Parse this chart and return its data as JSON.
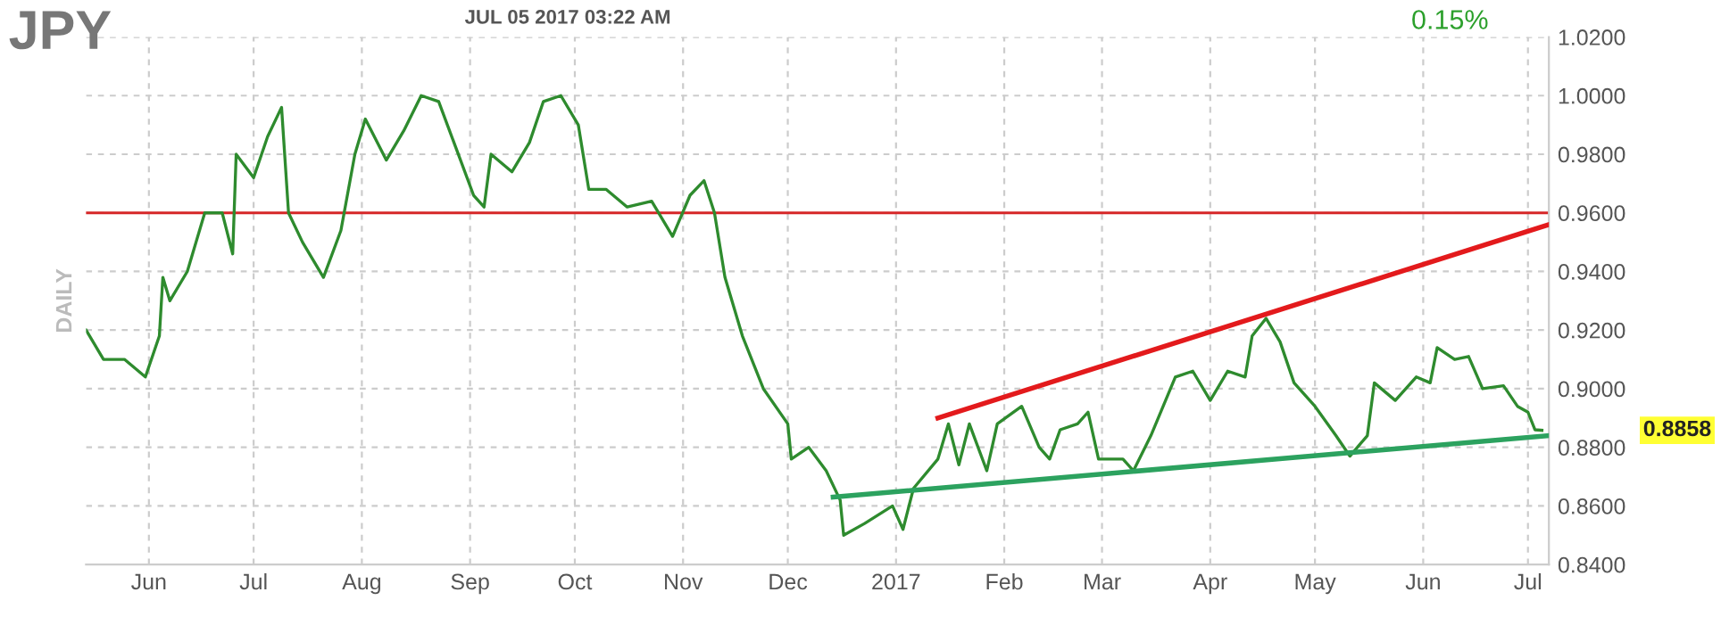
{
  "chart_data": {
    "type": "line",
    "title": "JPY",
    "subtitle": "JUL 05 2017 03:22 AM",
    "ylabel": "DAILY",
    "annotations": [
      "0.15%",
      "0.8858"
    ],
    "xlim": [
      "2016-05-14",
      "2017-07-07"
    ],
    "xticks": [
      {
        "value": "2016-06-01",
        "label": "Jun"
      },
      {
        "value": "2016-07-01",
        "label": "Jul"
      },
      {
        "value": "2016-08-01",
        "label": "Aug"
      },
      {
        "value": "2016-09-01",
        "label": "Sep"
      },
      {
        "value": "2016-10-01",
        "label": "Oct"
      },
      {
        "value": "2016-11-01",
        "label": "Nov"
      },
      {
        "value": "2016-12-01",
        "label": "Dec"
      },
      {
        "value": "2017-01-01",
        "label": "2017"
      },
      {
        "value": "2017-02-01",
        "label": "Feb"
      },
      {
        "value": "2017-03-01",
        "label": "Mar"
      },
      {
        "value": "2017-04-01",
        "label": "Apr"
      },
      {
        "value": "2017-05-01",
        "label": "May"
      },
      {
        "value": "2017-06-01",
        "label": "Jun"
      },
      {
        "value": "2017-07-01",
        "label": "Jul"
      }
    ],
    "ylim": [
      0.84,
      1.02
    ],
    "yticks": [
      {
        "value": 0.84,
        "label": "0.8400"
      },
      {
        "value": 0.86,
        "label": "0.8600"
      },
      {
        "value": 0.88,
        "label": "0.8800"
      },
      {
        "value": 0.9,
        "label": "0.9000"
      },
      {
        "value": 0.92,
        "label": "0.9200"
      },
      {
        "value": 0.94,
        "label": "0.9400"
      },
      {
        "value": 0.96,
        "label": "0.9600"
      },
      {
        "value": 0.98,
        "label": "0.9800"
      },
      {
        "value": 1.0,
        "label": "1.0000"
      },
      {
        "value": 1.02,
        "label": "1.0200"
      }
    ],
    "grid": true,
    "line_style": "solid",
    "marker": "none",
    "ref_lines": [
      {
        "axis": "y",
        "value": 0.96,
        "color": "#d62728"
      }
    ],
    "series": [
      {
        "color": "#2e8b2e",
        "x": [
          "2016-05-14",
          "2016-05-19",
          "2016-05-25",
          "2016-05-31",
          "2016-06-04",
          "2016-06-05",
          "2016-06-07",
          "2016-06-12",
          "2016-06-17",
          "2016-06-22",
          "2016-06-25",
          "2016-06-26",
          "2016-07-01",
          "2016-07-05",
          "2016-07-09",
          "2016-07-11",
          "2016-07-15",
          "2016-07-21",
          "2016-07-26",
          "2016-07-30",
          "2016-08-02",
          "2016-08-08",
          "2016-08-13",
          "2016-08-18",
          "2016-08-23",
          "2016-08-28",
          "2016-09-02",
          "2016-09-05",
          "2016-09-07",
          "2016-09-13",
          "2016-09-18",
          "2016-09-22",
          "2016-09-27",
          "2016-10-02",
          "2016-10-05",
          "2016-10-10",
          "2016-10-16",
          "2016-10-23",
          "2016-10-29",
          "2016-11-03",
          "2016-11-07",
          "2016-11-10",
          "2016-11-13",
          "2016-11-18",
          "2016-11-24",
          "2016-12-01",
          "2016-12-02",
          "2016-12-07",
          "2016-12-12",
          "2016-12-16",
          "2016-12-17",
          "2016-12-23",
          "2016-12-31",
          "2017-01-03",
          "2017-01-06",
          "2017-01-13",
          "2017-01-16",
          "2017-01-19",
          "2017-01-22",
          "2017-01-27",
          "2017-01-30",
          "2017-02-06",
          "2017-02-11",
          "2017-02-14",
          "2017-02-17",
          "2017-02-22",
          "2017-02-25",
          "2017-02-28",
          "2017-03-07",
          "2017-03-10",
          "2017-03-15",
          "2017-03-22",
          "2017-03-27",
          "2017-04-01",
          "2017-04-06",
          "2017-04-11",
          "2017-04-13",
          "2017-04-17",
          "2017-04-21",
          "2017-04-25",
          "2017-05-01",
          "2017-05-07",
          "2017-05-11",
          "2017-05-16",
          "2017-05-18",
          "2017-05-24",
          "2017-05-30",
          "2017-06-03",
          "2017-06-05",
          "2017-06-10",
          "2017-06-14",
          "2017-06-18",
          "2017-06-24",
          "2017-06-28",
          "2017-07-01",
          "2017-07-03",
          "2017-07-05"
        ],
        "values": [
          0.92,
          0.91,
          0.91,
          0.904,
          0.918,
          0.938,
          0.93,
          0.94,
          0.96,
          0.96,
          0.946,
          0.98,
          0.972,
          0.986,
          0.996,
          0.96,
          0.95,
          0.938,
          0.954,
          0.98,
          0.992,
          0.978,
          0.988,
          1.0,
          0.998,
          0.982,
          0.966,
          0.962,
          0.98,
          0.974,
          0.984,
          0.998,
          1.0,
          0.99,
          0.968,
          0.968,
          0.962,
          0.964,
          0.952,
          0.966,
          0.971,
          0.96,
          0.938,
          0.918,
          0.9,
          0.888,
          0.876,
          0.88,
          0.872,
          0.862,
          0.85,
          0.854,
          0.86,
          0.852,
          0.866,
          0.876,
          0.888,
          0.874,
          0.888,
          0.872,
          0.888,
          0.894,
          0.88,
          0.876,
          0.886,
          0.888,
          0.892,
          0.876,
          0.876,
          0.872,
          0.884,
          0.904,
          0.906,
          0.896,
          0.906,
          0.904,
          0.918,
          0.924,
          0.916,
          0.902,
          0.894,
          0.884,
          0.877,
          0.884,
          0.902,
          0.896,
          0.904,
          0.902,
          0.914,
          0.91,
          0.911,
          0.9,
          0.901,
          0.894,
          0.892,
          0.886,
          0.8858
        ]
      },
      {
        "type": "line",
        "color": "#e31a1c",
        "x": [
          "2017-01-13",
          "2017-07-07"
        ],
        "values": [
          0.89,
          0.956
        ]
      },
      {
        "type": "line",
        "color": "#2ca25f",
        "x": [
          "2016-12-14",
          "2017-07-07"
        ],
        "values": [
          0.863,
          0.884
        ]
      }
    ]
  }
}
